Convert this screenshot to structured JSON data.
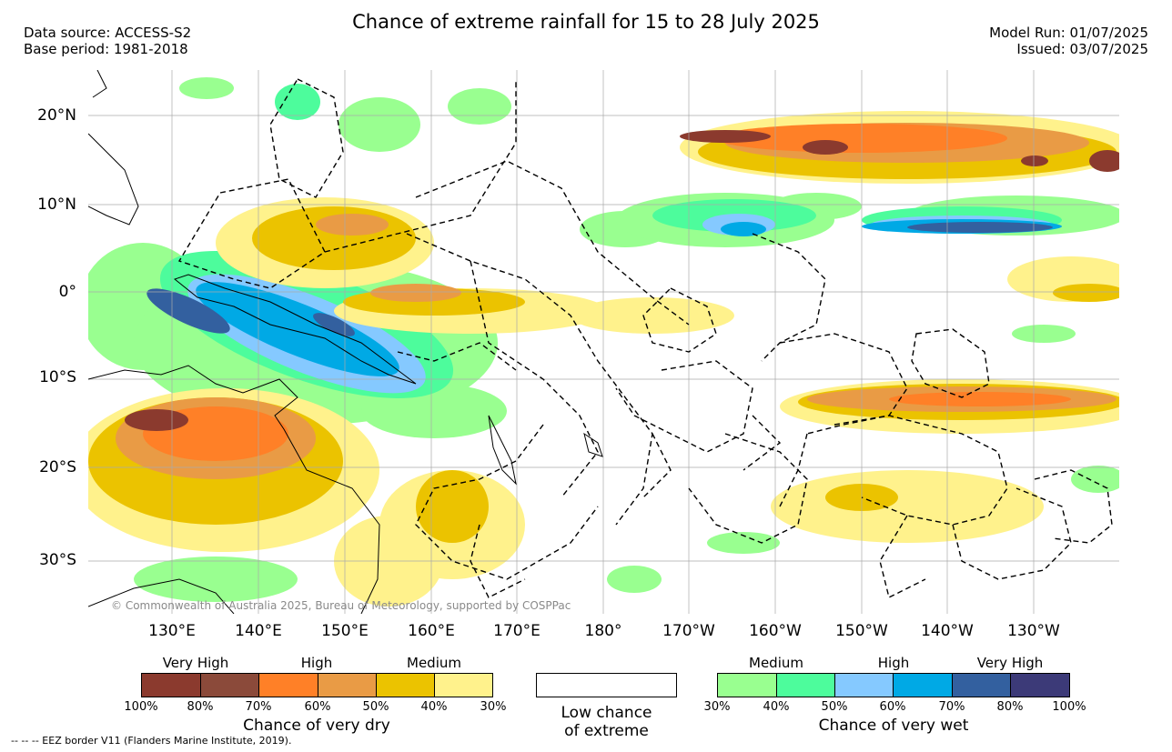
{
  "header": {
    "title": "Chance of extreme rainfall for 15 to 28 July 2025",
    "data_source": "Data source: ACCESS-S2",
    "base_period": "Base period: 1981-2018",
    "model_run": "Model Run: 01/07/2025",
    "issued": "Issued: 03/07/2025"
  },
  "map": {
    "lat_labels": [
      "20°N",
      "10°N",
      "0°",
      "10°S",
      "20°S",
      "30°S"
    ],
    "lon_labels": [
      "130°E",
      "140°E",
      "150°E",
      "160°E",
      "170°E",
      "180°",
      "170°W",
      "160°W",
      "150°W",
      "140°W",
      "130°W"
    ],
    "copyright": "© Commonwealth of Australia 2025, Bureau of Meteorology, supported by COSPPac"
  },
  "legend_dry": {
    "category_labels": [
      "Very High",
      "High",
      "Medium"
    ],
    "ticks": [
      "100%",
      "80%",
      "70%",
      "60%",
      "50%",
      "40%",
      "30%"
    ],
    "colors": [
      "#8b3a2e",
      "#8b4a3a",
      "#ff8027",
      "#e99b45",
      "#ebc300",
      "#fff28c"
    ],
    "caption": "Chance of very dry"
  },
  "legend_low": {
    "caption_line1": "Low chance",
    "caption_line2": "of extreme",
    "color": "#ffffff"
  },
  "legend_wet": {
    "category_labels": [
      "Medium",
      "High",
      "Very High"
    ],
    "ticks": [
      "30%",
      "40%",
      "50%",
      "60%",
      "70%",
      "80%",
      "100%"
    ],
    "colors": [
      "#99ff90",
      "#4dfc9c",
      "#85c9ff",
      "#00a9e5",
      "#33609f",
      "#3c3a78"
    ],
    "caption": "Chance of very wet"
  },
  "footer": "-- -- -- EEZ border V11 (Flanders Marine Institute, 2019)."
}
